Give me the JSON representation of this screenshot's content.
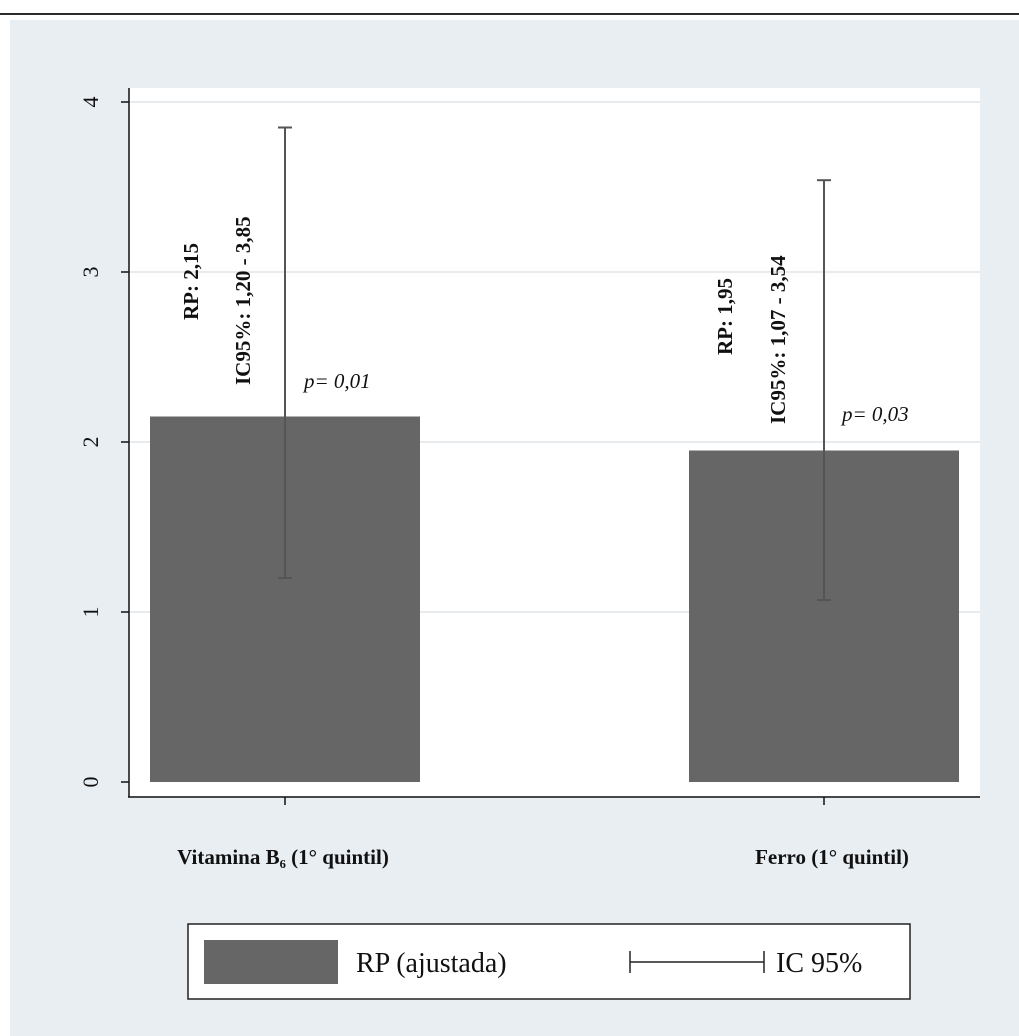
{
  "chart_data": {
    "type": "bar",
    "categories": [
      "Vitamina B₆ (1° quintil)",
      "Ferro (1° quintil)"
    ],
    "series": [
      {
        "name": "RP (ajustada)",
        "values": [
          2.15,
          1.95
        ],
        "ci_lower": [
          1.2,
          1.07
        ],
        "ci_upper": [
          3.85,
          3.54
        ]
      }
    ],
    "annotations": [
      {
        "rp_text": "RP: 2,15",
        "ci_text": "IC95%: 1,20 - 3,85",
        "p_text": "p= 0,01"
      },
      {
        "rp_text": "RP: 1,95",
        "ci_text": "IC95%: 1,07 - 3,54",
        "p_text": "p= 0,03"
      }
    ],
    "yticks": [
      0,
      1,
      2,
      3,
      4
    ],
    "ytick_labels": [
      "0",
      "1",
      "2",
      "3",
      "4"
    ],
    "ylim": [
      0,
      4
    ],
    "grid": true,
    "xlabel": "",
    "ylabel": "",
    "legend": {
      "position": "bottom",
      "entries": [
        "RP (ajustada)",
        "IC 95%"
      ]
    },
    "colors": {
      "bar": "#666666",
      "ci": "#555555",
      "plot_background": "#ffffff",
      "outer_background": "#e9eef2",
      "grid": "#e8ecef"
    }
  }
}
